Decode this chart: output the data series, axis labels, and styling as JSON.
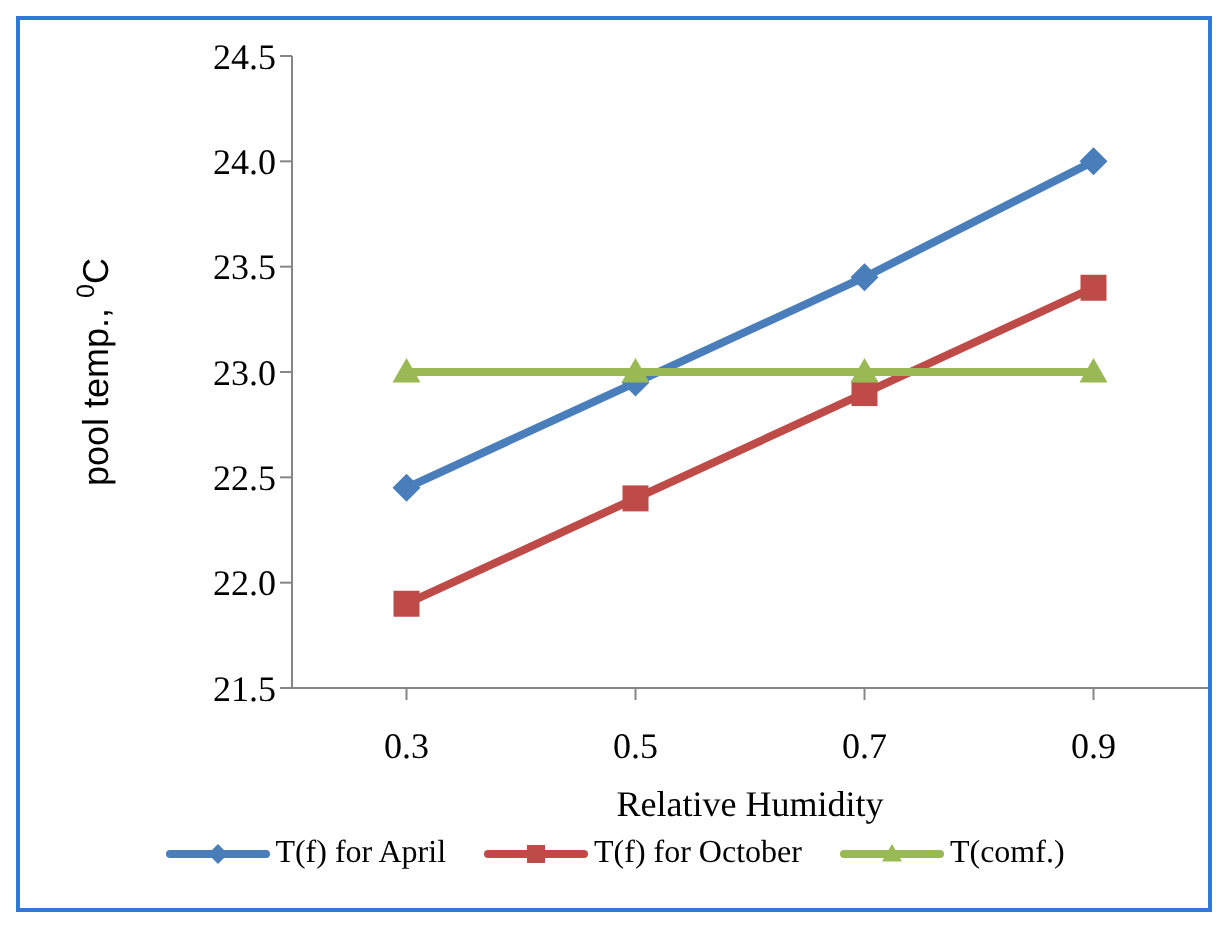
{
  "chart_data": {
    "type": "line",
    "xlabel": "Relative Humidity",
    "ylabel": "pool temp., $^{0}$C",
    "categories": [
      "0.3",
      "0.5",
      "0.7",
      "0.9"
    ],
    "series": [
      {
        "name": "T(f) for April",
        "color": "#4a7ebb",
        "marker": "diamond",
        "values": [
          22.45,
          22.95,
          23.45,
          24.0
        ]
      },
      {
        "name": "T(f) for October",
        "color": "#be4b48",
        "marker": "square",
        "values": [
          21.9,
          22.4,
          22.9,
          23.4
        ]
      },
      {
        "name": "T(comf.)",
        "color": "#98b954",
        "marker": "triangle",
        "values": [
          23.0,
          23.0,
          23.0,
          23.0
        ]
      }
    ],
    "ylim": [
      21.5,
      24.5
    ],
    "yticks": [
      21.5,
      {
        "value": 22,
        "label": "22.0"
      },
      22.5,
      {
        "value": 23,
        "label": "23.0"
      },
      23.5,
      {
        "value": 24,
        "label": "24.0"
      },
      24.5
    ],
    "grid": false,
    "legend": "bottom",
    "line_style": "solid"
  }
}
